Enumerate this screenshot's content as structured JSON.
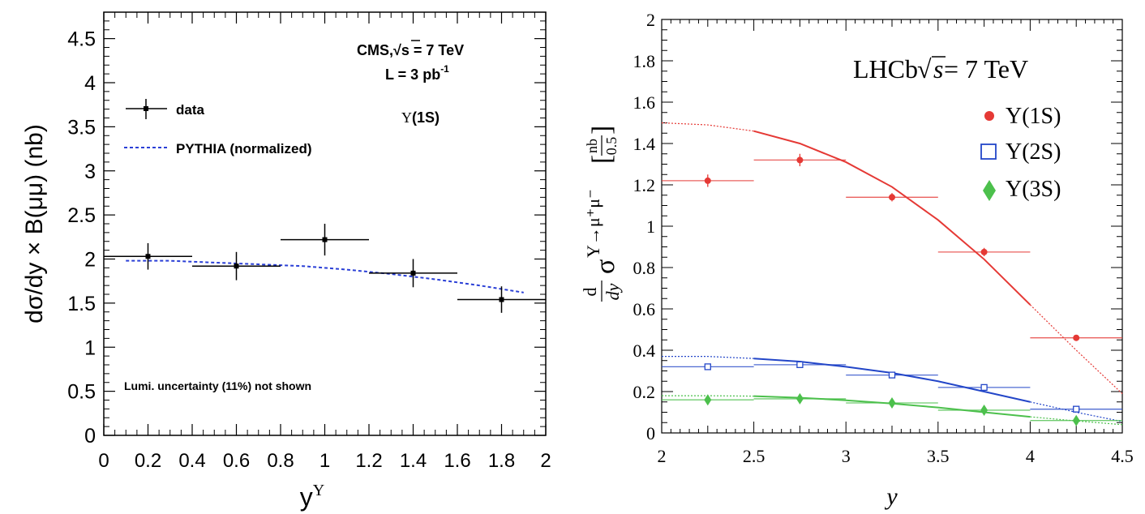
{
  "chart_data": [
    {
      "id": "cms",
      "type": "scatter",
      "experiment_label": "CMS,√s = 7 TeV",
      "experiment_prefix": "CMS,",
      "experiment_suffix": "s = 7 TeV",
      "lumi_label": "L =  3 pb",
      "lumi_sup": "-1",
      "state_label": "Υ(1S)",
      "state_prefix": "Υ",
      "state_suffix": "(1S)",
      "note": "Lumi. uncertainty (11%) not shown",
      "ylabel": "dσ/dy × B(μμ)  (nb)",
      "xlabel_main": "y",
      "xlabel_sup": "Υ",
      "xlim": [
        0,
        2
      ],
      "ylim": [
        0,
        4.8
      ],
      "xticks": [
        "0",
        "0.2",
        "0.4",
        "0.6",
        "0.8",
        "1",
        "1.2",
        "1.4",
        "1.6",
        "1.8",
        "2"
      ],
      "yticks": [
        "0",
        "0.5",
        "1",
        "1.5",
        "2",
        "2.5",
        "3",
        "3.5",
        "4",
        "4.5"
      ],
      "legend": [
        {
          "label": "data",
          "style": "marker"
        },
        {
          "label": "PYTHIA (normalized)",
          "style": "dashed-line",
          "color": "#2a3fd6"
        }
      ],
      "series": [
        {
          "name": "data",
          "color": "#000000",
          "points": [
            {
              "x": 0.2,
              "y": 2.03,
              "xerr": 0.2,
              "yerr": 0.15
            },
            {
              "x": 0.6,
              "y": 1.92,
              "xerr": 0.2,
              "yerr": 0.16
            },
            {
              "x": 1.0,
              "y": 2.22,
              "xerr": 0.2,
              "yerr": 0.18
            },
            {
              "x": 1.4,
              "y": 1.84,
              "xerr": 0.2,
              "yerr": 0.16
            },
            {
              "x": 1.8,
              "y": 1.54,
              "xerr": 0.2,
              "yerr": 0.15
            }
          ]
        },
        {
          "name": "PYTHIA (normalized)",
          "color": "#2a3fd6",
          "curve": [
            [
              0.1,
              1.98
            ],
            [
              0.3,
              1.98
            ],
            [
              0.5,
              1.96
            ],
            [
              0.7,
              1.94
            ],
            [
              0.9,
              1.92
            ],
            [
              1.1,
              1.88
            ],
            [
              1.3,
              1.83
            ],
            [
              1.5,
              1.77
            ],
            [
              1.7,
              1.7
            ],
            [
              1.9,
              1.62
            ]
          ]
        }
      ]
    },
    {
      "id": "lhcb",
      "type": "scatter",
      "experiment_label": "LHCb √s = 7 TeV",
      "experiment_prefix": "LHCb ",
      "experiment_suffix": " = 7 TeV",
      "experiment_s": "s",
      "ylabel_frac_num": "d",
      "ylabel_frac_den": "dy",
      "ylabel_main": "σ",
      "ylabel_sup": "Υ→μ⁺μ⁻",
      "ylabel_unit_num": "nb",
      "ylabel_unit_den": "0.5",
      "xlabel": "y",
      "xlim": [
        2,
        4.5
      ],
      "ylim": [
        0,
        2
      ],
      "xticks": [
        "2",
        "2.5",
        "3",
        "3.5",
        "4",
        "4.5"
      ],
      "yticks": [
        "0",
        "0.2",
        "0.4",
        "0.6",
        "0.8",
        "1",
        "1.2",
        "1.4",
        "1.6",
        "1.8",
        "2"
      ],
      "legend": [
        {
          "label": "Υ(1S)",
          "marker": "circle",
          "color": "#e53935"
        },
        {
          "label": "Υ(2S)",
          "marker": "open-square",
          "color": "#2346c8"
        },
        {
          "label": "Υ(3S)",
          "marker": "diamond",
          "color": "#4cc04c"
        }
      ],
      "series": [
        {
          "name": "Υ(1S)",
          "color": "#e53935",
          "points": [
            {
              "x": 2.25,
              "y": 1.22,
              "xerr": 0.25,
              "yerr": 0.03
            },
            {
              "x": 2.75,
              "y": 1.32,
              "xerr": 0.25,
              "yerr": 0.03
            },
            {
              "x": 3.25,
              "y": 1.14,
              "xerr": 0.25,
              "yerr": 0.02
            },
            {
              "x": 3.75,
              "y": 0.875,
              "xerr": 0.25,
              "yerr": 0.02
            },
            {
              "x": 4.25,
              "y": 0.46,
              "xerr": 0.25,
              "yerr": 0.01
            }
          ],
          "curve": [
            [
              2.0,
              1.5
            ],
            [
              2.25,
              1.49
            ],
            [
              2.5,
              1.46
            ],
            [
              2.75,
              1.4
            ],
            [
              3.0,
              1.31
            ],
            [
              3.25,
              1.19
            ],
            [
              3.5,
              1.03
            ],
            [
              3.75,
              0.84
            ],
            [
              4.0,
              0.62
            ],
            [
              4.25,
              0.4
            ],
            [
              4.5,
              0.19
            ]
          ]
        },
        {
          "name": "Υ(2S)",
          "color": "#2346c8",
          "points": [
            {
              "x": 2.25,
              "y": 0.32,
              "xerr": 0.25,
              "yerr": 0.01
            },
            {
              "x": 2.75,
              "y": 0.33,
              "xerr": 0.25,
              "yerr": 0.01
            },
            {
              "x": 3.25,
              "y": 0.28,
              "xerr": 0.25,
              "yerr": 0.01
            },
            {
              "x": 3.75,
              "y": 0.22,
              "xerr": 0.25,
              "yerr": 0.01
            },
            {
              "x": 4.25,
              "y": 0.115,
              "xerr": 0.25,
              "yerr": 0.005
            }
          ],
          "curve": [
            [
              2.0,
              0.37
            ],
            [
              2.25,
              0.37
            ],
            [
              2.5,
              0.36
            ],
            [
              2.75,
              0.345
            ],
            [
              3.0,
              0.32
            ],
            [
              3.25,
              0.29
            ],
            [
              3.5,
              0.25
            ],
            [
              3.75,
              0.2
            ],
            [
              4.0,
              0.15
            ],
            [
              4.25,
              0.1
            ],
            [
              4.5,
              0.055
            ]
          ]
        },
        {
          "name": "Υ(3S)",
          "color": "#4cc04c",
          "points": [
            {
              "x": 2.25,
              "y": 0.16,
              "xerr": 0.25,
              "yerr": 0.01
            },
            {
              "x": 2.75,
              "y": 0.165,
              "xerr": 0.25,
              "yerr": 0.01
            },
            {
              "x": 3.25,
              "y": 0.145,
              "xerr": 0.25,
              "yerr": 0.01
            },
            {
              "x": 3.75,
              "y": 0.11,
              "xerr": 0.25,
              "yerr": 0.005
            },
            {
              "x": 4.25,
              "y": 0.06,
              "xerr": 0.25,
              "yerr": 0.005
            }
          ],
          "curve": [
            [
              2.0,
              0.18
            ],
            [
              2.25,
              0.18
            ],
            [
              2.5,
              0.178
            ],
            [
              2.75,
              0.17
            ],
            [
              3.0,
              0.158
            ],
            [
              3.25,
              0.142
            ],
            [
              3.5,
              0.123
            ],
            [
              3.75,
              0.1
            ],
            [
              4.0,
              0.078
            ],
            [
              4.25,
              0.058
            ],
            [
              4.5,
              0.04
            ]
          ]
        }
      ]
    }
  ]
}
